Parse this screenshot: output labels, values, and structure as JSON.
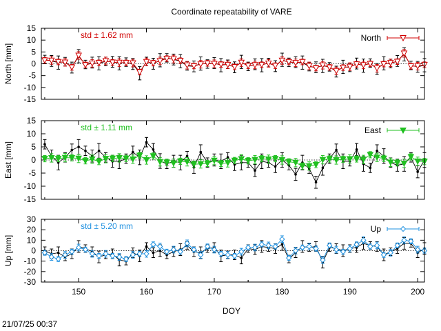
{
  "page": {
    "title": "Coordinate repeatability of VARE",
    "footer_timestamp": "21/07/25 00:37"
  },
  "chart_data": [
    {
      "type": "line",
      "panel": "north",
      "ylabel": "North [mm]",
      "ylim": [
        -15,
        15
      ],
      "yticks": [
        15,
        10,
        5,
        0,
        -5,
        -10,
        -15
      ],
      "xlim": [
        144.5,
        201
      ],
      "annotation": "std ± 1.62 mm",
      "color": "#d00000",
      "marker": "triangle-down-open",
      "legend": {
        "label": "North",
        "placement": "top-right"
      },
      "x": [
        145,
        146,
        147,
        148,
        149,
        150,
        151,
        152,
        153,
        154,
        155,
        156,
        157,
        158,
        159,
        160,
        161,
        162,
        163,
        164,
        165,
        166,
        167,
        168,
        169,
        170,
        171,
        172,
        173,
        174,
        175,
        176,
        177,
        178,
        179,
        180,
        181,
        182,
        183,
        184,
        185,
        186,
        187,
        188,
        189,
        190,
        191,
        192,
        193,
        194,
        195,
        196,
        197,
        198,
        199,
        200,
        201
      ],
      "series": [
        {
          "name": "North (colored)",
          "values": [
            1.5,
            1.4,
            0.8,
            0.6,
            -1.5,
            3.5,
            -0.5,
            0.2,
            0.4,
            1.2,
            0.6,
            0.5,
            0.4,
            0.3,
            -3.5,
            0.8,
            0.3,
            1.2,
            2.2,
            2.0,
            1.3,
            -0.6,
            -0.9,
            -0.2,
            0.2,
            0.0,
            -0.3,
            -0.4,
            -1.3,
            0.5,
            -0.8,
            -0.5,
            -0.4,
            0.2,
            -0.8,
            1.4,
            0.8,
            0.4,
            0.8,
            -0.9,
            -1.8,
            -0.6,
            -1.5,
            -3.0,
            -1.6,
            -1.2,
            -0.2,
            -0.5,
            0.0,
            -1.9,
            -0.1,
            0.4,
            0.9,
            4.4,
            -1.0,
            -1.0,
            -0.4
          ]
        },
        {
          "name": "North (black)",
          "values": [
            1.8,
            1.2,
            0.5,
            0.9,
            -1.6,
            3.2,
            -0.3,
            0.5,
            0.2,
            1.0,
            0.8,
            0.2,
            0.7,
            -0.1,
            -4.0,
            1.0,
            0.0,
            1.5,
            2.5,
            1.8,
            1.1,
            -0.9,
            -1.1,
            0.1,
            -0.1,
            0.3,
            -0.6,
            -0.2,
            -1.5,
            0.8,
            -1.1,
            -0.2,
            -0.6,
            0.5,
            -1.0,
            1.7,
            0.6,
            0.7,
            0.5,
            -1.2,
            -1.5,
            -0.9,
            -1.3,
            -3.3,
            -1.3,
            -1.5,
            0.1,
            -0.8,
            0.3,
            -2.2,
            0.2,
            0.1,
            1.2,
            4.0,
            -0.7,
            -1.3,
            -0.6
          ]
        }
      ]
    },
    {
      "type": "line",
      "panel": "east",
      "ylabel": "East [mm]",
      "ylim": [
        -15,
        15
      ],
      "yticks": [
        15,
        10,
        5,
        0,
        -5,
        -10,
        -15
      ],
      "xlim": [
        144.5,
        201
      ],
      "annotation": "std ± 1.11 mm",
      "color": "#20c020",
      "marker": "triangle-down-filled",
      "legend": {
        "label": "East",
        "placement": "top-right"
      },
      "x": [
        145,
        146,
        147,
        148,
        149,
        150,
        151,
        152,
        153,
        154,
        155,
        156,
        157,
        158,
        159,
        160,
        161,
        162,
        163,
        164,
        165,
        166,
        167,
        168,
        169,
        170,
        171,
        172,
        173,
        174,
        175,
        176,
        177,
        178,
        179,
        180,
        181,
        182,
        183,
        184,
        185,
        186,
        187,
        188,
        189,
        190,
        191,
        192,
        193,
        194,
        195,
        196,
        197,
        198,
        199,
        200,
        201
      ],
      "series": [
        {
          "name": "East (colored)",
          "values": [
            0.5,
            0.8,
            0.5,
            0.9,
            0.8,
            0.6,
            -0.3,
            0.3,
            -0.6,
            0.5,
            0.6,
            0.8,
            0.6,
            0.3,
            1.7,
            0.0,
            1.5,
            -0.7,
            -0.9,
            -1.2,
            -0.5,
            -0.7,
            -1.6,
            -1.5,
            -1.3,
            -0.2,
            -1.3,
            -1.1,
            -0.2,
            0.4,
            -0.3,
            0.1,
            0.5,
            0.3,
            0.5,
            0.0,
            -0.7,
            -1.0,
            -2.3,
            -2.3,
            -1.8,
            0.1,
            0.4,
            0.0,
            0.3,
            0.4,
            0.4,
            0.2,
            2.0,
            1.0,
            0.6,
            -0.9,
            -1.1,
            -1.3,
            1.2,
            -0.5,
            -0.6
          ]
        },
        {
          "name": "East (black)",
          "values": [
            6.0,
            1.5,
            -1.0,
            1.0,
            3.8,
            5.0,
            3.5,
            1.5,
            3.5,
            1.0,
            -0.5,
            -0.5,
            0.5,
            3.0,
            1.0,
            6.8,
            4.0,
            -0.4,
            -1.5,
            -0.5,
            -1.0,
            1.5,
            -2.8,
            3.0,
            -1.0,
            0.0,
            -0.5,
            1.0,
            -1.7,
            -1.0,
            -1.0,
            -4.0,
            -0.5,
            -1.0,
            -2.5,
            0.0,
            -2.0,
            -5.5,
            -1.0,
            -3.3,
            -8.5,
            -3.0,
            0.5,
            3.8,
            -0.5,
            -0.5,
            4.0,
            -1.5,
            -3.0,
            3.5,
            1.5,
            -1.0,
            -2.0,
            -1.5,
            1.0,
            -4.5,
            0.0
          ]
        }
      ]
    },
    {
      "type": "line",
      "panel": "up",
      "ylabel": "Up [mm]",
      "ylim": [
        -30,
        30
      ],
      "yticks": [
        30,
        20,
        10,
        0,
        -10,
        -20,
        -30
      ],
      "xlim": [
        144.5,
        201
      ],
      "xlabel": "DOY",
      "xticks": [
        150,
        160,
        170,
        180,
        190,
        200
      ],
      "annotation": "std ± 5.20 mm",
      "color": "#1e90e0",
      "marker": "diamond-open",
      "legend": {
        "label": "Up",
        "placement": "top-right"
      },
      "x": [
        145,
        146,
        147,
        148,
        149,
        150,
        151,
        152,
        153,
        154,
        155,
        156,
        157,
        158,
        159,
        160,
        161,
        162,
        163,
        164,
        165,
        166,
        167,
        168,
        169,
        170,
        171,
        172,
        173,
        174,
        175,
        176,
        177,
        178,
        179,
        180,
        181,
        182,
        183,
        184,
        185,
        186,
        187,
        188,
        189,
        190,
        191,
        192,
        193,
        194,
        195,
        196,
        197,
        198,
        199,
        200,
        201
      ],
      "series": [
        {
          "name": "Up (colored)",
          "values": [
            -2,
            -6,
            -8,
            -4,
            -1,
            3,
            1,
            -3,
            -5,
            -3,
            -5,
            -6,
            -8,
            -4,
            -3,
            -3,
            6,
            4,
            -1,
            1,
            -1,
            7,
            1,
            -4,
            4,
            1,
            -3,
            -4,
            -5,
            -1,
            3,
            3,
            6,
            5,
            4,
            11,
            -7,
            0,
            3,
            4,
            2,
            -9,
            5,
            1,
            -1,
            2,
            6,
            10,
            4,
            5,
            -4,
            -2,
            5,
            10,
            9,
            1,
            0
          ]
        },
        {
          "name": "Up (black)",
          "values": [
            0,
            -3,
            -2,
            -6,
            -3,
            4,
            2,
            -1,
            -6,
            -4,
            -3,
            -9,
            -10,
            -2,
            -5,
            4,
            -2,
            0,
            -4,
            -1,
            1,
            5,
            -1,
            -2,
            2,
            3,
            -5,
            -4,
            -4,
            -7,
            2,
            1,
            4,
            3,
            2,
            6,
            -8,
            -2,
            4,
            3,
            4,
            -11,
            3,
            2,
            0,
            2,
            3,
            7,
            5,
            4,
            -4,
            -1,
            2,
            7,
            7,
            -2,
            2
          ]
        }
      ]
    }
  ]
}
